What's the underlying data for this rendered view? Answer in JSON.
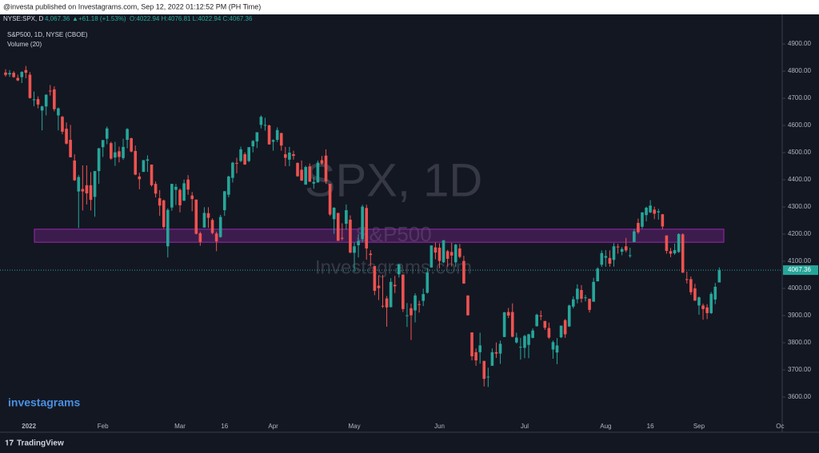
{
  "header": {
    "published": "@investa published on Investagrams.com, Sep 12, 2022 01:12:52 PM (PH Time)",
    "symbol": "NYSE:SPX, D",
    "last": "4,067.36",
    "change": "+61.18 (+1.53%)",
    "ohlc": "O:4022.94 H:4076.81 L:4022.94 C:4067.36"
  },
  "legend": {
    "series": "S&P500, 1D, NYSE (CBOE)",
    "indicator": "Volume (20)"
  },
  "watermark": {
    "symbol": "SPX, 1D",
    "name": "S&P500",
    "site": "Investagrams.com"
  },
  "logo": "investagrams",
  "footer": "TradingView",
  "chart_data": {
    "type": "candlestick",
    "up_color": "#26a69a",
    "down_color": "#ef5350",
    "zone_color": "#9c27b0",
    "ylim": [
      3541,
      4959
    ],
    "yticks": [
      {
        "value": 3600,
        "label": "3600.00"
      },
      {
        "value": 3700,
        "label": "3700.00"
      },
      {
        "value": 3800,
        "label": "3800.00"
      },
      {
        "value": 3900,
        "label": "3900.00"
      },
      {
        "value": 4000,
        "label": "4000.00"
      },
      {
        "value": 4100,
        "label": "4100.00"
      },
      {
        "value": 4200,
        "label": "4200.00"
      },
      {
        "value": 4300,
        "label": "4300.00"
      },
      {
        "value": 4400,
        "label": "4400.00"
      },
      {
        "value": 4500,
        "label": "4500.00"
      },
      {
        "value": 4600,
        "label": "4600.00"
      },
      {
        "value": 4700,
        "label": "4700.00"
      },
      {
        "value": 4800,
        "label": "4800.00"
      },
      {
        "value": 4900,
        "label": "4900.00"
      }
    ],
    "x_labels": [
      "2022",
      "Feb",
      "Mar",
      "16",
      "Apr",
      "May",
      "Jun",
      "Jul",
      "Aug",
      "16",
      "Sep",
      "Oc"
    ],
    "zone": [
      4170,
      4218
    ],
    "last_price": 4067.36,
    "open": [
      4795,
      4788,
      4794,
      4775,
      4778,
      4804,
      4787,
      4693,
      4697,
      4655,
      4670,
      4728,
      4733,
      4637,
      4632,
      4588,
      4547,
      4471,
      4357,
      4366,
      4380,
      4380,
      4337,
      4432,
      4520,
      4551,
      4535,
      4482,
      4505,
      4480,
      4547,
      4553,
      4506,
      4412,
      4429,
      4470,
      4456,
      4385,
      4332,
      4324,
      4155,
      4298,
      4363,
      4363,
      4323,
      4401,
      4342,
      4327,
      4203,
      4224,
      4277,
      4252,
      4202,
      4189,
      4288,
      4345,
      4407,
      4462,
      4469,
      4494,
      4469,
      4523,
      4541,
      4602,
      4600,
      4600,
      4540,
      4547,
      4572,
      4494,
      4474,
      4494,
      4462,
      4437,
      4382,
      4449,
      4386,
      4390,
      4472,
      4489,
      4385,
      4255,
      4278,
      4186,
      4238,
      4253,
      4131,
      4159,
      4181,
      4296,
      4128,
      4082,
      4010,
      3936,
      3963,
      3931,
      4013,
      4052,
      4051,
      3899,
      3927,
      3919,
      3942,
      3954,
      3984,
      4077,
      4151,
      4150,
      4096,
      4137,
      4134,
      4096,
      4147,
      4101,
      3974,
      3838,
      3765,
      3765,
      3733,
      3674,
      3715,
      3765,
      3760,
      3821,
      3913,
      3913,
      3801,
      3785,
      3781,
      3792,
      3818,
      3861,
      3900,
      3880,
      3854,
      3775,
      3764,
      3820,
      3883,
      3860,
      3933,
      3960,
      3994,
      3966,
      3962,
      3951,
      4026,
      4087,
      4113,
      4112,
      4105,
      4154,
      4135,
      4155,
      4122,
      4171,
      4241,
      4227,
      4270,
      4280,
      4290,
      4280,
      4273,
      4195,
      4137,
      4129,
      4134,
      4199,
      4034,
      4034,
      4000,
      3937,
      3937,
      3930,
      3909,
      3959,
      4022
    ],
    "high": [
      4807,
      4804,
      4800,
      4787,
      4800,
      4819,
      4797,
      4725,
      4707,
      4673,
      4715,
      4749,
      4744,
      4666,
      4635,
      4611,
      4602,
      4494,
      4417,
      4453,
      4453,
      4428,
      4432,
      4517,
      4547,
      4596,
      4540,
      4540,
      4522,
      4551,
      4590,
      4555,
      4526,
      4426,
      4473,
      4490,
      4456,
      4394,
      4362,
      4327,
      4295,
      4385,
      4385,
      4368,
      4401,
      4417,
      4355,
      4327,
      4209,
      4299,
      4299,
      4258,
      4209,
      4271,
      4358,
      4415,
      4466,
      4481,
      4522,
      4501,
      4520,
      4546,
      4575,
      4637,
      4628,
      4603,
      4549,
      4593,
      4573,
      4521,
      4521,
      4507,
      4464,
      4471,
      4452,
      4460,
      4410,
      4471,
      4488,
      4512,
      4385,
      4299,
      4278,
      4240,
      4309,
      4269,
      4169,
      4200,
      4308,
      4308,
      4141,
      4082,
      4048,
      4050,
      3972,
      4038,
      4046,
      4090,
      4051,
      3946,
      3944,
      3982,
      3955,
      3999,
      4075,
      4158,
      4169,
      4166,
      4178,
      4142,
      4168,
      4164,
      4164,
      4120,
      3974,
      3838,
      3779,
      3837,
      3733,
      3708,
      3779,
      3801,
      3808,
      3913,
      3928,
      3945,
      3837,
      3818,
      3829,
      3833,
      3853,
      3907,
      3918,
      3880,
      3874,
      3808,
      3817,
      3863,
      3887,
      3940,
      3971,
      4015,
      4012,
      3976,
      3962,
      4039,
      4078,
      4140,
      4141,
      4140,
      4167,
      4164,
      4152,
      4186,
      4150,
      4219,
      4257,
      4280,
      4301,
      4325,
      4301,
      4293,
      4274,
      4195,
      4149,
      4165,
      4203,
      4203,
      4062,
      4044,
      4017,
      3970,
      3944,
      3942,
      3987,
      4020,
      4077
    ],
    "low": [
      4780,
      4779,
      4776,
      4763,
      4756,
      4774,
      4699,
      4671,
      4663,
      4582,
      4637,
      4710,
      4652,
      4582,
      4568,
      4530,
      4482,
      4396,
      4222,
      4287,
      4309,
      4287,
      4264,
      4385,
      4484,
      4531,
      4474,
      4451,
      4464,
      4473,
      4516,
      4501,
      4417,
      4365,
      4429,
      4429,
      4375,
      4335,
      4267,
      4221,
      4114,
      4286,
      4307,
      4280,
      4322,
      4345,
      4284,
      4199,
      4157,
      4224,
      4223,
      4199,
      4137,
      4187,
      4267,
      4335,
      4390,
      4424,
      4465,
      4455,
      4465,
      4501,
      4517,
      4589,
      4581,
      4530,
      4507,
      4539,
      4507,
      4450,
      4450,
      4474,
      4411,
      4395,
      4382,
      4392,
      4367,
      4390,
      4455,
      4385,
      4267,
      4201,
      4175,
      4176,
      4217,
      4129,
      4062,
      4114,
      4171,
      4106,
      4081,
      3975,
      3957,
      3928,
      3859,
      3930,
      3983,
      4040,
      3913,
      3858,
      3810,
      3875,
      3911,
      3935,
      3981,
      4077,
      4107,
      4074,
      4093,
      4080,
      4081,
      4079,
      4111,
      4017,
      3900,
      3735,
      3715,
      3723,
      3639,
      3637,
      3715,
      3744,
      3722,
      3821,
      3891,
      3820,
      3797,
      3738,
      3743,
      3743,
      3816,
      3859,
      3883,
      3847,
      3814,
      3741,
      3721,
      3817,
      3818,
      3858,
      3926,
      3945,
      3948,
      3952,
      3911,
      3951,
      4026,
      4079,
      4080,
      4080,
      4080,
      4128,
      4122,
      4133,
      4113,
      4171,
      4201,
      4220,
      4247,
      4277,
      4255,
      4253,
      4218,
      4128,
      4115,
      4124,
      4131,
      4057,
      4018,
      3976,
      3954,
      3903,
      3885,
      3887,
      3906,
      3942,
      4022
    ],
    "close": [
      4786,
      4793,
      4778,
      4766,
      4797,
      4794,
      4701,
      4696,
      4677,
      4670,
      4713,
      4726,
      4660,
      4663,
      4577,
      4533,
      4483,
      4398,
      4410,
      4357,
      4350,
      4326,
      4432,
      4516,
      4546,
      4589,
      4478,
      4501,
      4484,
      4521,
      4587,
      4504,
      4419,
      4402,
      4472,
      4475,
      4380,
      4349,
      4305,
      4226,
      4289,
      4385,
      4374,
      4306,
      4387,
      4364,
      4329,
      4201,
      4171,
      4278,
      4260,
      4204,
      4173,
      4263,
      4358,
      4412,
      4463,
      4461,
      4512,
      4456,
      4520,
      4543,
      4575,
      4632,
      4602,
      4530,
      4546,
      4583,
      4526,
      4481,
      4500,
      4488,
      4413,
      4397,
      4447,
      4393,
      4392,
      4463,
      4460,
      4394,
      4272,
      4297,
      4175,
      4183,
      4288,
      4132,
      4155,
      4175,
      4301,
      4147,
      4123,
      3991,
      4001,
      3935,
      3930,
      4024,
      4008,
      4088,
      3924,
      3901,
      3901,
      3974,
      3941,
      3979,
      4058,
      4158,
      4132,
      4101,
      4177,
      4109,
      4121,
      4161,
      4116,
      4018,
      3901,
      3750,
      3735,
      3790,
      3667,
      3675,
      3765,
      3760,
      3796,
      3912,
      3900,
      3822,
      3819,
      3785,
      3825,
      3831,
      3845,
      3903,
      3899,
      3855,
      3819,
      3802,
      3790,
      3863,
      3831,
      3937,
      3960,
      3999,
      3962,
      3967,
      3921,
      4024,
      4073,
      4130,
      4119,
      4091,
      4155,
      4152,
      4145,
      4140,
      4122,
      4210,
      4207,
      4280,
      4297,
      4305,
      4275,
      4284,
      4228,
      4138,
      4128,
      4141,
      4200,
      4058,
      4031,
      3986,
      3955,
      3967,
      3924,
      3909,
      3980,
      4006,
      4067
    ]
  }
}
